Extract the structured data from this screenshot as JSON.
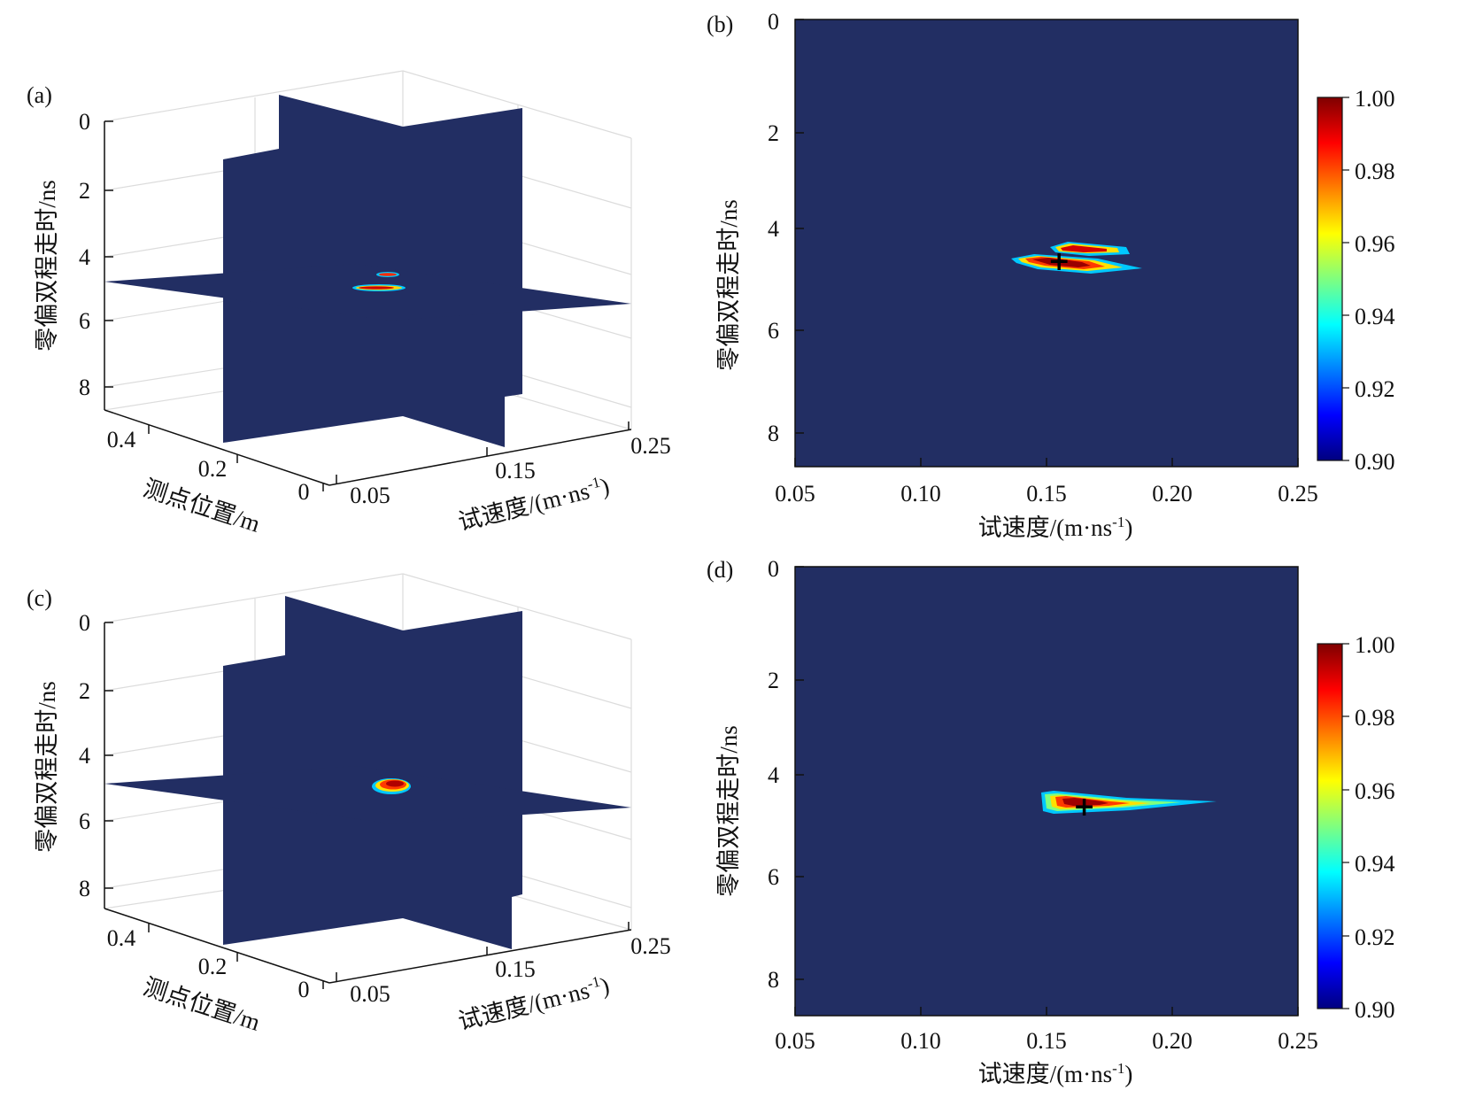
{
  "panels": {
    "a": {
      "label": "(a)"
    },
    "b": {
      "label": "(b)"
    },
    "c": {
      "label": "(c)"
    },
    "d": {
      "label": "(d)"
    }
  },
  "colors": {
    "background_field": "#222e63",
    "jet": [
      "#00007f",
      "#0000ff",
      "#007fff",
      "#00ffff",
      "#7fff7f",
      "#ffff00",
      "#ff7f00",
      "#ff0000",
      "#7f0000"
    ],
    "marker": "#000000"
  },
  "chart_data": [
    {
      "panel": "a",
      "type": "heatmap",
      "projection": "3d-orthogonal-slices",
      "xlabel": "测点位置/m",
      "xticks": [
        "0.4",
        "0.2",
        "0"
      ],
      "ylabel": "试速度/(m·ns",
      "ylabel_sup": "-1",
      "ylabel_close": ")",
      "yticks": [
        "0.05",
        "0.15",
        "0.25"
      ],
      "zlabel": "零偏双程走时/ns",
      "zticks": [
        "0",
        "2",
        "4",
        "6",
        "8"
      ],
      "velocity_range": [
        0.05,
        0.25
      ],
      "time_range": [
        0,
        8.5
      ]
    },
    {
      "panel": "b",
      "type": "heatmap",
      "xlabel": "试速度/(m·ns",
      "xlabel_sup": "-1",
      "xlabel_close": ")",
      "ylabel": "零偏双程走时/ns",
      "xlim": [
        0.05,
        0.25
      ],
      "ylim": [
        0,
        8.7
      ],
      "xticks": [
        "0.05",
        "0.10",
        "0.15",
        "0.20",
        "0.25"
      ],
      "yticks": [
        "0",
        "2",
        "4",
        "6",
        "8"
      ],
      "colorbar": {
        "range": [
          0.9,
          1.0
        ],
        "ticks": [
          "1.00",
          "0.98",
          "0.96",
          "0.94",
          "0.92",
          "0.90"
        ]
      },
      "peak": {
        "velocity": 0.155,
        "time": 4.7
      },
      "grid": false
    },
    {
      "panel": "c",
      "type": "heatmap",
      "projection": "3d-orthogonal-slices",
      "xlabel": "测点位置/m",
      "xticks": [
        "0.4",
        "0.2",
        "0"
      ],
      "ylabel": "试速度/(m·ns",
      "ylabel_sup": "-1",
      "ylabel_close": ")",
      "yticks": [
        "0.05",
        "0.15",
        "0.25"
      ],
      "zlabel": "零偏双程走时/ns",
      "zticks": [
        "0",
        "2",
        "4",
        "6",
        "8"
      ],
      "velocity_range": [
        0.05,
        0.25
      ],
      "time_range": [
        0,
        8.5
      ]
    },
    {
      "panel": "d",
      "type": "heatmap",
      "xlabel": "试速度/(m·ns",
      "xlabel_sup": "-1",
      "xlabel_close": ")",
      "ylabel": "零偏双程走时/ns",
      "xlim": [
        0.05,
        0.25
      ],
      "ylim": [
        0,
        8.7
      ],
      "xticks": [
        "0.05",
        "0.10",
        "0.15",
        "0.20",
        "0.25"
      ],
      "yticks": [
        "0",
        "2",
        "4",
        "6",
        "8"
      ],
      "colorbar": {
        "range": [
          0.9,
          1.0
        ],
        "ticks": [
          "1.00",
          "0.98",
          "0.96",
          "0.94",
          "0.92",
          "0.90"
        ]
      },
      "peak": {
        "velocity": 0.165,
        "time": 4.65
      },
      "grid": false
    }
  ]
}
